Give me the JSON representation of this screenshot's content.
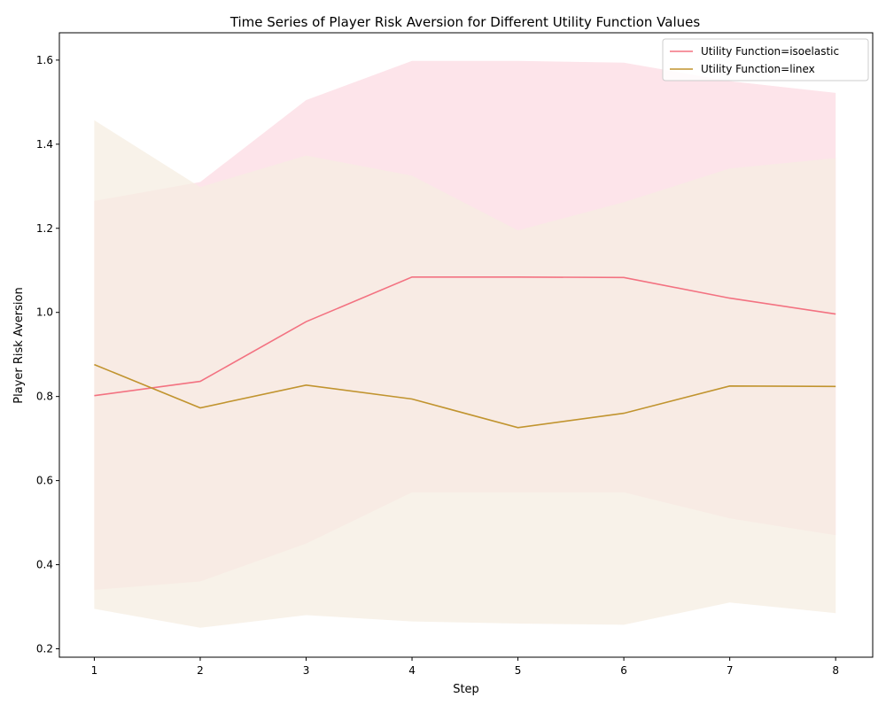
{
  "chart_data": {
    "type": "line",
    "title": "Time Series of Player Risk Aversion for Different Utility Function Values",
    "xlabel": "Step",
    "ylabel": "Player Risk Aversion",
    "x": [
      1,
      2,
      3,
      4,
      5,
      6,
      7,
      8
    ],
    "xlim": [
      0.67,
      8.35
    ],
    "ylim": [
      0.18,
      1.665
    ],
    "xticks": [
      1,
      2,
      3,
      4,
      5,
      6,
      7,
      8
    ],
    "yticks": [
      0.2,
      0.4,
      0.6,
      0.8,
      1.0,
      1.2,
      1.4,
      1.6
    ],
    "ytick_labels": [
      "0.2",
      "0.4",
      "0.6",
      "0.8",
      "1.0",
      "1.2",
      "1.4",
      "1.6"
    ],
    "grid": false,
    "legend_position": "top-right",
    "series": [
      {
        "name": "Utility Function=isoelastic",
        "color": "#f37281",
        "band_color": "#fde4ea",
        "values": [
          0.802,
          0.836,
          0.978,
          1.084,
          1.084,
          1.083,
          1.034,
          0.996
        ],
        "lower": [
          0.34,
          0.36,
          0.45,
          0.572,
          0.572,
          0.572,
          0.51,
          0.47
        ],
        "upper": [
          1.265,
          1.31,
          1.505,
          1.598,
          1.598,
          1.594,
          1.55,
          1.522
        ]
      },
      {
        "name": "Utility Function=linex",
        "color": "#c1942f",
        "band_color": "#f5eee1",
        "values": [
          0.876,
          0.773,
          0.827,
          0.794,
          0.726,
          0.76,
          0.825,
          0.824
        ],
        "lower": [
          0.295,
          0.25,
          0.28,
          0.265,
          0.26,
          0.257,
          0.31,
          0.285
        ],
        "upper": [
          1.457,
          1.298,
          1.373,
          1.325,
          1.195,
          1.262,
          1.342,
          1.367
        ]
      }
    ]
  }
}
